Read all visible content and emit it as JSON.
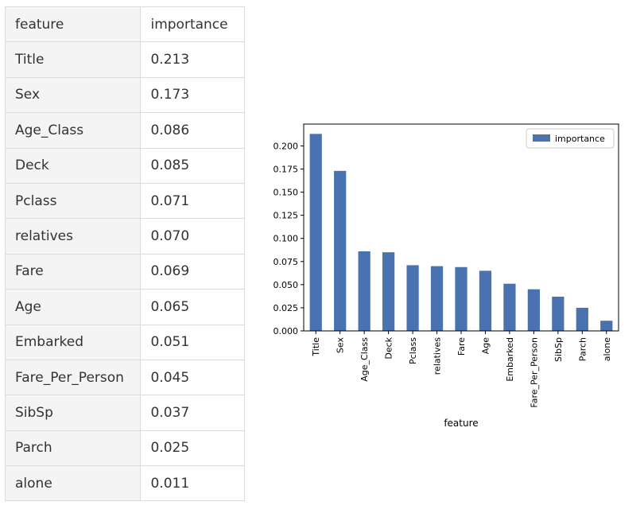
{
  "table": {
    "headers": [
      "feature",
      "importance"
    ],
    "rows": [
      {
        "feature": "Title",
        "importance": "0.213"
      },
      {
        "feature": "Sex",
        "importance": "0.173"
      },
      {
        "feature": "Age_Class",
        "importance": "0.086"
      },
      {
        "feature": "Deck",
        "importance": "0.085"
      },
      {
        "feature": "Pclass",
        "importance": "0.071"
      },
      {
        "feature": "relatives",
        "importance": "0.070"
      },
      {
        "feature": "Fare",
        "importance": "0.069"
      },
      {
        "feature": "Age",
        "importance": "0.065"
      },
      {
        "feature": "Embarked",
        "importance": "0.051"
      },
      {
        "feature": "Fare_Per_Person",
        "importance": "0.045"
      },
      {
        "feature": "SibSp",
        "importance": "0.037"
      },
      {
        "feature": "Parch",
        "importance": "0.025"
      },
      {
        "feature": "alone",
        "importance": "0.011"
      }
    ]
  },
  "chart_data": {
    "type": "bar",
    "title": "",
    "xlabel": "feature",
    "ylabel": "",
    "categories": [
      "Title",
      "Sex",
      "Age_Class",
      "Deck",
      "Pclass",
      "relatives",
      "Fare",
      "Age",
      "Embarked",
      "Fare_Per_Person",
      "SibSp",
      "Parch",
      "alone"
    ],
    "series": [
      {
        "name": "importance",
        "values": [
          0.213,
          0.173,
          0.086,
          0.085,
          0.071,
          0.07,
          0.069,
          0.065,
          0.051,
          0.045,
          0.037,
          0.025,
          0.011
        ]
      }
    ],
    "ylim": [
      0,
      0.2236
    ],
    "yticks": [
      "0.000",
      "0.025",
      "0.050",
      "0.075",
      "0.100",
      "0.125",
      "0.150",
      "0.175",
      "0.200"
    ],
    "legend_position": "top-right",
    "grid": false,
    "bar_color": "#4a72b0"
  }
}
